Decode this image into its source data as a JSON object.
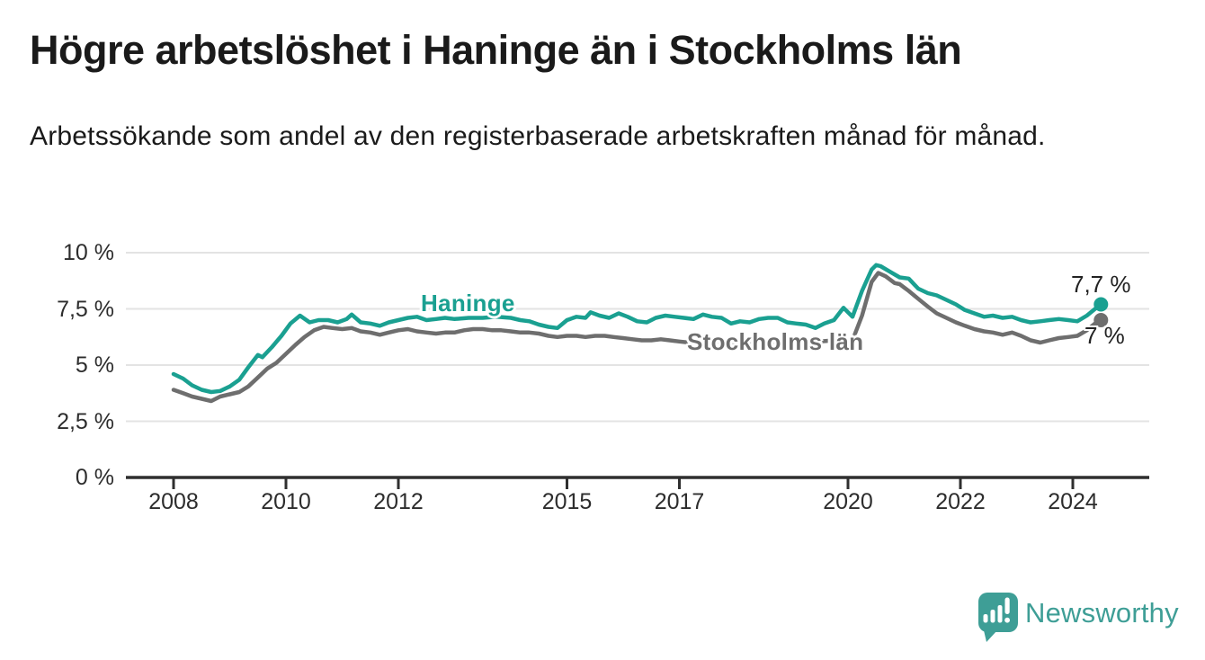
{
  "chart_data": {
    "type": "line",
    "title": "Högre arbetslöshet i Haninge än i Stockholms län",
    "subtitle": "Arbetssökande som andel av den registerbaserade arbetskraften månad för månad.",
    "unit": "%",
    "grid": "horizontal",
    "legend": "inline-labels",
    "colors": {
      "axis": "#2f2f2f",
      "grid": "#e3e3e3",
      "tick_text": "#2d2d2d"
    },
    "x_axis": {
      "range": [
        2007.6,
        2025.35
      ],
      "ticks": [
        {
          "value": 2008,
          "label": "2008"
        },
        {
          "value": 2010,
          "label": "2010"
        },
        {
          "value": 2012,
          "label": "2012"
        },
        {
          "value": 2015,
          "label": "2015"
        },
        {
          "value": 2017,
          "label": "2017"
        },
        {
          "value": 2020,
          "label": "2020"
        },
        {
          "value": 2022,
          "label": "2022"
        },
        {
          "value": 2024,
          "label": "2024"
        }
      ]
    },
    "y_axis": {
      "range": [
        0,
        10
      ],
      "ticks": [
        {
          "value": 0,
          "label": "0 %"
        },
        {
          "value": 2.5,
          "label": "2,5 %"
        },
        {
          "value": 5,
          "label": "5 %"
        },
        {
          "value": 7.5,
          "label": "7,5 %"
        },
        {
          "value": 10,
          "label": "10 %"
        }
      ]
    },
    "series": [
      {
        "name": "Haninge",
        "color": "#1aa091",
        "end_label": "7,7 %",
        "end_value": 7.7,
        "points": [
          [
            2008.0,
            4.6
          ],
          [
            2008.17,
            4.4
          ],
          [
            2008.33,
            4.1
          ],
          [
            2008.5,
            3.9
          ],
          [
            2008.67,
            3.8
          ],
          [
            2008.83,
            3.85
          ],
          [
            2009.0,
            4.05
          ],
          [
            2009.17,
            4.35
          ],
          [
            2009.33,
            4.9
          ],
          [
            2009.5,
            5.45
          ],
          [
            2009.58,
            5.35
          ],
          [
            2009.75,
            5.8
          ],
          [
            2009.92,
            6.3
          ],
          [
            2010.08,
            6.85
          ],
          [
            2010.25,
            7.2
          ],
          [
            2010.42,
            6.9
          ],
          [
            2010.58,
            7.0
          ],
          [
            2010.75,
            7.0
          ],
          [
            2010.92,
            6.9
          ],
          [
            2011.08,
            7.05
          ],
          [
            2011.17,
            7.25
          ],
          [
            2011.33,
            6.9
          ],
          [
            2011.5,
            6.85
          ],
          [
            2011.67,
            6.75
          ],
          [
            2011.83,
            6.9
          ],
          [
            2012.0,
            7.0
          ],
          [
            2012.17,
            7.1
          ],
          [
            2012.33,
            7.15
          ],
          [
            2012.5,
            7.0
          ],
          [
            2012.67,
            7.05
          ],
          [
            2012.83,
            7.1
          ],
          [
            2013.0,
            7.05
          ],
          [
            2013.25,
            7.1
          ],
          [
            2013.5,
            7.1
          ],
          [
            2013.75,
            7.15
          ],
          [
            2014.0,
            7.1
          ],
          [
            2014.17,
            7.0
          ],
          [
            2014.33,
            6.95
          ],
          [
            2014.5,
            6.8
          ],
          [
            2014.67,
            6.7
          ],
          [
            2014.83,
            6.65
          ],
          [
            2015.0,
            7.0
          ],
          [
            2015.17,
            7.15
          ],
          [
            2015.33,
            7.1
          ],
          [
            2015.42,
            7.35
          ],
          [
            2015.58,
            7.2
          ],
          [
            2015.75,
            7.1
          ],
          [
            2015.92,
            7.3
          ],
          [
            2016.08,
            7.15
          ],
          [
            2016.25,
            6.95
          ],
          [
            2016.42,
            6.9
          ],
          [
            2016.58,
            7.1
          ],
          [
            2016.75,
            7.2
          ],
          [
            2016.92,
            7.15
          ],
          [
            2017.08,
            7.1
          ],
          [
            2017.25,
            7.05
          ],
          [
            2017.42,
            7.25
          ],
          [
            2017.58,
            7.15
          ],
          [
            2017.75,
            7.1
          ],
          [
            2017.92,
            6.85
          ],
          [
            2018.08,
            6.95
          ],
          [
            2018.25,
            6.9
          ],
          [
            2018.42,
            7.05
          ],
          [
            2018.58,
            7.1
          ],
          [
            2018.75,
            7.1
          ],
          [
            2018.92,
            6.9
          ],
          [
            2019.08,
            6.85
          ],
          [
            2019.25,
            6.8
          ],
          [
            2019.42,
            6.65
          ],
          [
            2019.58,
            6.85
          ],
          [
            2019.75,
            7.0
          ],
          [
            2019.92,
            7.55
          ],
          [
            2020.08,
            7.15
          ],
          [
            2020.25,
            8.3
          ],
          [
            2020.42,
            9.25
          ],
          [
            2020.5,
            9.45
          ],
          [
            2020.58,
            9.4
          ],
          [
            2020.75,
            9.15
          ],
          [
            2020.92,
            8.9
          ],
          [
            2021.08,
            8.85
          ],
          [
            2021.25,
            8.4
          ],
          [
            2021.42,
            8.2
          ],
          [
            2021.58,
            8.1
          ],
          [
            2021.75,
            7.9
          ],
          [
            2021.92,
            7.7
          ],
          [
            2022.08,
            7.45
          ],
          [
            2022.25,
            7.3
          ],
          [
            2022.42,
            7.15
          ],
          [
            2022.58,
            7.2
          ],
          [
            2022.75,
            7.1
          ],
          [
            2022.92,
            7.15
          ],
          [
            2023.08,
            7.0
          ],
          [
            2023.25,
            6.9
          ],
          [
            2023.42,
            6.95
          ],
          [
            2023.58,
            7.0
          ],
          [
            2023.75,
            7.05
          ],
          [
            2023.92,
            7.0
          ],
          [
            2024.08,
            6.95
          ],
          [
            2024.25,
            7.2
          ],
          [
            2024.42,
            7.55
          ],
          [
            2024.5,
            7.7
          ]
        ]
      },
      {
        "name": "Stockholms län",
        "color": "#6e6e6e",
        "end_label": "7 %",
        "end_value": 7.0,
        "points": [
          [
            2008.0,
            3.9
          ],
          [
            2008.17,
            3.75
          ],
          [
            2008.33,
            3.6
          ],
          [
            2008.5,
            3.5
          ],
          [
            2008.67,
            3.4
          ],
          [
            2008.83,
            3.6
          ],
          [
            2009.0,
            3.7
          ],
          [
            2009.17,
            3.8
          ],
          [
            2009.33,
            4.05
          ],
          [
            2009.5,
            4.45
          ],
          [
            2009.67,
            4.85
          ],
          [
            2009.83,
            5.1
          ],
          [
            2010.0,
            5.5
          ],
          [
            2010.17,
            5.9
          ],
          [
            2010.33,
            6.25
          ],
          [
            2010.5,
            6.55
          ],
          [
            2010.67,
            6.7
          ],
          [
            2010.83,
            6.65
          ],
          [
            2011.0,
            6.6
          ],
          [
            2011.17,
            6.65
          ],
          [
            2011.33,
            6.5
          ],
          [
            2011.5,
            6.45
          ],
          [
            2011.67,
            6.35
          ],
          [
            2011.83,
            6.45
          ],
          [
            2012.0,
            6.55
          ],
          [
            2012.17,
            6.6
          ],
          [
            2012.33,
            6.5
          ],
          [
            2012.5,
            6.45
          ],
          [
            2012.67,
            6.4
          ],
          [
            2012.83,
            6.45
          ],
          [
            2013.0,
            6.45
          ],
          [
            2013.17,
            6.55
          ],
          [
            2013.33,
            6.6
          ],
          [
            2013.5,
            6.6
          ],
          [
            2013.67,
            6.55
          ],
          [
            2013.83,
            6.55
          ],
          [
            2014.0,
            6.5
          ],
          [
            2014.17,
            6.45
          ],
          [
            2014.33,
            6.45
          ],
          [
            2014.5,
            6.4
          ],
          [
            2014.67,
            6.3
          ],
          [
            2014.83,
            6.25
          ],
          [
            2015.0,
            6.3
          ],
          [
            2015.17,
            6.3
          ],
          [
            2015.33,
            6.25
          ],
          [
            2015.5,
            6.3
          ],
          [
            2015.67,
            6.3
          ],
          [
            2015.83,
            6.25
          ],
          [
            2016.0,
            6.2
          ],
          [
            2016.17,
            6.15
          ],
          [
            2016.33,
            6.1
          ],
          [
            2016.5,
            6.1
          ],
          [
            2016.67,
            6.15
          ],
          [
            2016.83,
            6.1
          ],
          [
            2017.0,
            6.05
          ],
          [
            2017.17,
            6.0
          ],
          [
            2017.33,
            6.05
          ],
          [
            2017.5,
            6.0
          ],
          [
            2017.67,
            6.05
          ],
          [
            2017.83,
            6.0
          ],
          [
            2018.0,
            6.0
          ],
          [
            2018.25,
            6.05
          ],
          [
            2018.5,
            6.0
          ],
          [
            2018.75,
            6.05
          ],
          [
            2019.0,
            5.95
          ],
          [
            2019.25,
            6.0
          ],
          [
            2019.5,
            6.05
          ],
          [
            2019.75,
            6.1
          ],
          [
            2019.92,
            6.15
          ],
          [
            2020.08,
            6.1
          ],
          [
            2020.25,
            7.2
          ],
          [
            2020.42,
            8.7
          ],
          [
            2020.54,
            9.1
          ],
          [
            2020.67,
            8.95
          ],
          [
            2020.83,
            8.65
          ],
          [
            2020.92,
            8.6
          ],
          [
            2021.0,
            8.45
          ],
          [
            2021.08,
            8.3
          ],
          [
            2021.25,
            7.95
          ],
          [
            2021.42,
            7.6
          ],
          [
            2021.58,
            7.3
          ],
          [
            2021.75,
            7.1
          ],
          [
            2021.92,
            6.9
          ],
          [
            2022.08,
            6.75
          ],
          [
            2022.25,
            6.6
          ],
          [
            2022.42,
            6.5
          ],
          [
            2022.58,
            6.45
          ],
          [
            2022.75,
            6.35
          ],
          [
            2022.92,
            6.45
          ],
          [
            2023.08,
            6.3
          ],
          [
            2023.25,
            6.1
          ],
          [
            2023.42,
            6.0
          ],
          [
            2023.58,
            6.1
          ],
          [
            2023.75,
            6.2
          ],
          [
            2023.92,
            6.25
          ],
          [
            2024.08,
            6.3
          ],
          [
            2024.25,
            6.55
          ],
          [
            2024.42,
            6.9
          ],
          [
            2024.5,
            7.0
          ]
        ]
      }
    ]
  },
  "branding": {
    "name": "Newsworthy",
    "color": "#3e9e96"
  }
}
